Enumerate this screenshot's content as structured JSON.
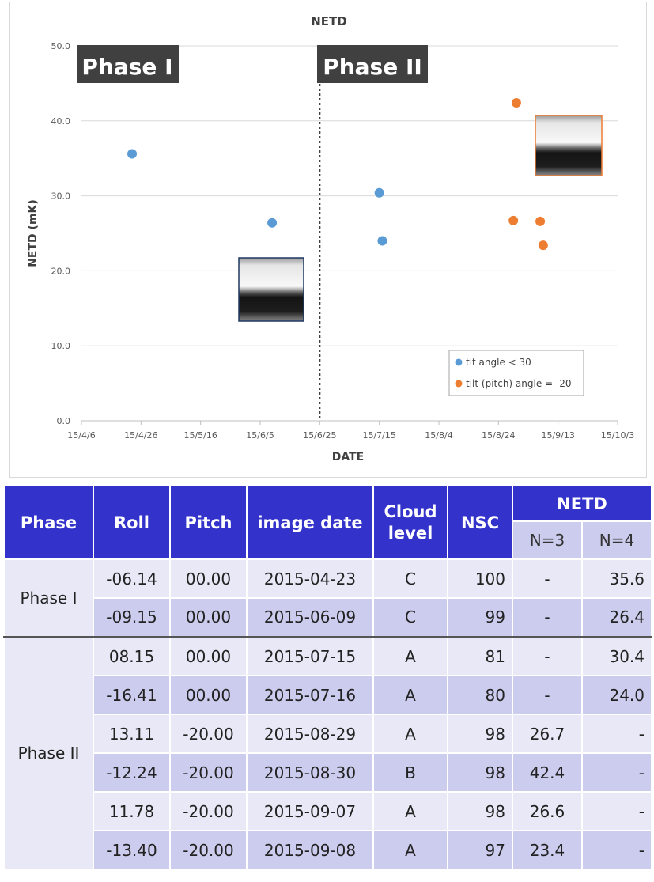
{
  "chart_data": {
    "type": "scatter",
    "title": "NETD",
    "xlabel": "DATE",
    "ylabel": "NETD (mK)",
    "x_ticks": [
      "15/4/6",
      "15/4/26",
      "15/5/16",
      "15/6/5",
      "15/6/25",
      "15/7/15",
      "15/8/4",
      "15/8/24",
      "15/9/13",
      "15/10/3"
    ],
    "x_range": [
      "2015-04-06",
      "2015-10-03"
    ],
    "y_ticks": [
      "0.0",
      "10.0",
      "20.0",
      "30.0",
      "40.0",
      "50.0"
    ],
    "ylim": [
      0,
      50
    ],
    "grid": "horizontal",
    "phase_divider_date": "2015-06-25",
    "phase_labels": [
      "Phase I",
      "Phase II"
    ],
    "legend_position": "bottom-right",
    "series": [
      {
        "name": "tit angle < 30",
        "color": "#5b9bd5",
        "points": [
          {
            "x": "2015-04-23",
            "y": 35.6
          },
          {
            "x": "2015-06-09",
            "y": 26.4
          },
          {
            "x": "2015-07-15",
            "y": 30.4
          },
          {
            "x": "2015-07-16",
            "y": 24.0
          }
        ]
      },
      {
        "name": "tilt (pitch) angle = -20",
        "color": "#ed7d31",
        "points": [
          {
            "x": "2015-08-29",
            "y": 26.7
          },
          {
            "x": "2015-08-30",
            "y": 42.4
          },
          {
            "x": "2015-09-07",
            "y": 26.6
          },
          {
            "x": "2015-09-08",
            "y": 23.4
          }
        ]
      }
    ],
    "insets": [
      {
        "name": "thermal-inset-phase-1",
        "border_color": "#1f3864"
      },
      {
        "name": "thermal-inset-phase-2",
        "border_color": "#ed7d31"
      }
    ]
  },
  "table": {
    "headers": {
      "phase": "Phase",
      "roll": "Roll",
      "pitch": "Pitch",
      "image_date": "image date",
      "cloud_level": "Cloud level",
      "nsc": "NSC",
      "netd": "NETD",
      "n3": "N=3",
      "n4": "N=4"
    },
    "phase1": "Phase I",
    "phase2": "Phase II",
    "rows": [
      {
        "roll": "-06.14",
        "pitch": "00.00",
        "date": "2015-04-23",
        "cloud": "C",
        "nsc": "100",
        "n3": "-",
        "n4": "35.6"
      },
      {
        "roll": "-09.15",
        "pitch": "00.00",
        "date": "2015-06-09",
        "cloud": "C",
        "nsc": "99",
        "n3": "-",
        "n4": "26.4"
      },
      {
        "roll": "08.15",
        "pitch": "00.00",
        "date": "2015-07-15",
        "cloud": "A",
        "nsc": "81",
        "n3": "-",
        "n4": "30.4"
      },
      {
        "roll": "-16.41",
        "pitch": "00.00",
        "date": "2015-07-16",
        "cloud": "A",
        "nsc": "80",
        "n3": "-",
        "n4": "24.0"
      },
      {
        "roll": "13.11",
        "pitch": "-20.00",
        "date": "2015-08-29",
        "cloud": "A",
        "nsc": "98",
        "n3": "26.7",
        "n4": "-"
      },
      {
        "roll": "-12.24",
        "pitch": "-20.00",
        "date": "2015-08-30",
        "cloud": "B",
        "nsc": "98",
        "n3": "42.4",
        "n4": "-"
      },
      {
        "roll": "11.78",
        "pitch": "-20.00",
        "date": "2015-09-07",
        "cloud": "A",
        "nsc": "98",
        "n3": "26.6",
        "n4": "-"
      },
      {
        "roll": "-13.40",
        "pitch": "-20.00",
        "date": "2015-09-08",
        "cloud": "A",
        "nsc": "97",
        "n3": "23.4",
        "n4": "-"
      }
    ]
  }
}
